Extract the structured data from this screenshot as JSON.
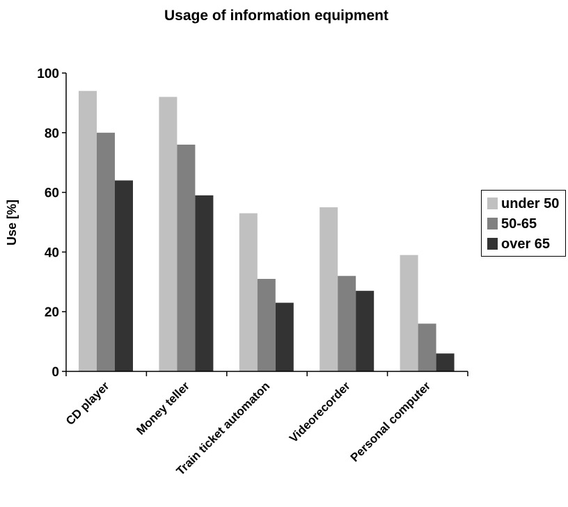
{
  "chart_data": {
    "type": "bar",
    "title": "Usage of information equipment",
    "xlabel": "",
    "ylabel": "Use [%]",
    "ylim": [
      0,
      100
    ],
    "yticks": [
      0,
      20,
      40,
      60,
      80,
      100
    ],
    "categories": [
      "CD player",
      "Money teller",
      "Train ticket automaton",
      "Videorecorder",
      "Personal computer"
    ],
    "series": [
      {
        "name": "under 50",
        "color": "#c0c0c0",
        "values": [
          94,
          92,
          53,
          55,
          39
        ]
      },
      {
        "name": "50-65",
        "color": "#808080",
        "values": [
          80,
          76,
          31,
          32,
          16
        ]
      },
      {
        "name": "over 65",
        "color": "#333333",
        "values": [
          64,
          59,
          23,
          27,
          6
        ]
      }
    ],
    "grid": false,
    "legend_position": "right"
  }
}
